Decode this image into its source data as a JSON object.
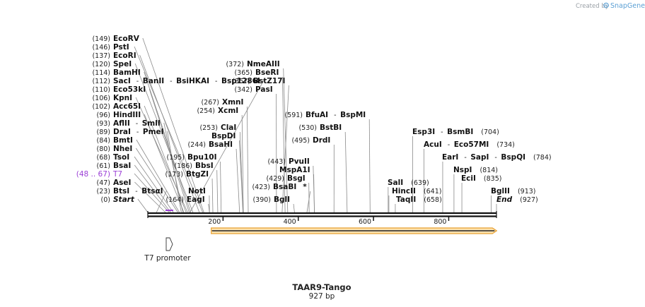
{
  "header": {
    "credit": "Created by",
    "brand": "SnapGene"
  },
  "plasmid": {
    "name": "TAAR9-Tango",
    "length_label": "927 bp",
    "length": 927
  },
  "colors": {
    "feature": "#9b3fd6",
    "orf_fill": "#fde3b0",
    "orf_stroke": "#e8a030",
    "backbone": "#111111",
    "credit": "#9aa0a6",
    "brand": "#5a9fd4"
  },
  "ticks": [
    {
      "bp": 200,
      "label": "200"
    },
    {
      "bp": 400,
      "label": "400"
    },
    {
      "bp": 600,
      "label": "600"
    },
    {
      "bp": 800,
      "label": "800"
    }
  ],
  "left_labels": [
    {
      "pos": "(0)",
      "names": [
        {
          "text": "Start",
          "style": "ital"
        }
      ],
      "bp": 0
    },
    {
      "pos": "(23)",
      "names": [
        {
          "text": "BtsI"
        },
        {
          "text": "BtsαI"
        }
      ],
      "bp": 23
    },
    {
      "pos": "(47)",
      "names": [
        {
          "text": "AseI"
        }
      ],
      "bp": 47
    },
    {
      "pos": "(48 .. 67)",
      "names": [
        {
          "text": "T7"
        }
      ],
      "bp": 57,
      "feature": true
    },
    {
      "pos": "(61)",
      "names": [
        {
          "text": "BsaI"
        }
      ],
      "bp": 61
    },
    {
      "pos": "(68)",
      "names": [
        {
          "text": "TsoI"
        }
      ],
      "bp": 68
    },
    {
      "pos": "(80)",
      "names": [
        {
          "text": "NheI"
        }
      ],
      "bp": 80
    },
    {
      "pos": "(84)",
      "names": [
        {
          "text": "BmtI"
        }
      ],
      "bp": 84
    },
    {
      "pos": "(89)",
      "names": [
        {
          "text": "DraI"
        },
        {
          "text": "PmeI"
        }
      ],
      "bp": 89
    },
    {
      "pos": "(93)",
      "names": [
        {
          "text": "AflII"
        },
        {
          "text": "SmlI"
        }
      ],
      "bp": 93
    },
    {
      "pos": "(96)",
      "names": [
        {
          "text": "HindIII"
        }
      ],
      "bp": 96
    },
    {
      "pos": "(102)",
      "names": [
        {
          "text": "Acc65I"
        }
      ],
      "bp": 102
    },
    {
      "pos": "(106)",
      "names": [
        {
          "text": "KpnI"
        }
      ],
      "bp": 106
    },
    {
      "pos": "(110)",
      "names": [
        {
          "text": "Eco53kI"
        }
      ],
      "bp": 110
    },
    {
      "pos": "(112)",
      "names": [
        {
          "text": "SacI"
        },
        {
          "text": "BanII"
        },
        {
          "text": "BsiHKAI"
        },
        {
          "text": "Bsp1286I"
        }
      ],
      "bp": 112
    },
    {
      "pos": "(114)",
      "names": [
        {
          "text": "BamHI"
        }
      ],
      "bp": 114
    },
    {
      "pos": "(120)",
      "names": [
        {
          "text": "SpeI"
        }
      ],
      "bp": 120
    },
    {
      "pos": "(137)",
      "names": [
        {
          "text": "EcoRI"
        }
      ],
      "bp": 137
    },
    {
      "pos": "(146)",
      "names": [
        {
          "text": "PstI"
        }
      ],
      "bp": 146
    },
    {
      "pos": "(149)",
      "names": [
        {
          "text": "EcoRV"
        }
      ],
      "bp": 149
    }
  ],
  "center_labels": [
    {
      "pos": "(164)",
      "names": [
        {
          "text": "EagI"
        }
      ],
      "bp": 164
    },
    {
      "pos": "(164)",
      "names": [
        {
          "text": "NotI"
        }
      ],
      "bp": 164,
      "pos_hidden": true
    },
    {
      "pos": "(173)",
      "names": [
        {
          "text": "BtgZI"
        }
      ],
      "bp": 173
    },
    {
      "pos": "(186)",
      "names": [
        {
          "text": "BbsI"
        }
      ],
      "bp": 186
    },
    {
      "pos": "(195)",
      "names": [
        {
          "text": "Bpu10I"
        }
      ],
      "bp": 195
    },
    {
      "pos": "(244)",
      "names": [
        {
          "text": "BsaHI"
        }
      ],
      "bp": 244
    },
    {
      "pos": "(253)",
      "names": [
        {
          "text": "BspDI"
        }
      ],
      "bp": 253,
      "pos_hidden": true
    },
    {
      "pos": "(253)",
      "names": [
        {
          "text": "ClaI"
        }
      ],
      "bp": 253
    },
    {
      "pos": "(254)",
      "names": [
        {
          "text": "XcmI"
        }
      ],
      "bp": 254
    },
    {
      "pos": "(267)",
      "names": [
        {
          "text": "XmnI"
        }
      ],
      "bp": 267
    },
    {
      "pos": "(342)",
      "names": [
        {
          "text": "PasI"
        }
      ],
      "bp": 342
    },
    {
      "pos": "(357)",
      "names": [
        {
          "text": "BstZ17I"
        }
      ],
      "bp": 357
    },
    {
      "pos": "(365)",
      "names": [
        {
          "text": "BseRI"
        }
      ],
      "bp": 365
    },
    {
      "pos": "(372)",
      "names": [
        {
          "text": "NmeAIII"
        }
      ],
      "bp": 372
    },
    {
      "pos": "(390)",
      "names": [
        {
          "text": "BglI"
        }
      ],
      "bp": 390
    },
    {
      "pos": "(423)",
      "names": [
        {
          "text": "BsaBI"
        },
        {
          "text": "*",
          "plain": true
        }
      ],
      "bp": 423
    },
    {
      "pos": "(429)",
      "names": [
        {
          "text": "BsgI"
        }
      ],
      "bp": 429
    },
    {
      "pos": "(443)",
      "names": [
        {
          "text": "MspA1I"
        }
      ],
      "bp": 443,
      "pos_hidden": true
    },
    {
      "pos": "(443)",
      "names": [
        {
          "text": "PvuII"
        }
      ],
      "bp": 443
    },
    {
      "pos": "(495)",
      "names": [
        {
          "text": "DrdI"
        }
      ],
      "bp": 495
    },
    {
      "pos": "(530)",
      "names": [
        {
          "text": "BstBI"
        }
      ],
      "bp": 530
    },
    {
      "pos": "(591)",
      "names": [
        {
          "text": "BfuAI"
        },
        {
          "text": "BspMI"
        }
      ],
      "bp": 591
    }
  ],
  "right_labels": [
    {
      "pos": "(639)",
      "names": [
        {
          "text": "SalI"
        }
      ],
      "bp": 639
    },
    {
      "pos": "(641)",
      "names": [
        {
          "text": "HincII"
        }
      ],
      "bp": 641
    },
    {
      "pos": "(658)",
      "names": [
        {
          "text": "TaqII"
        }
      ],
      "bp": 658
    },
    {
      "pos": "(704)",
      "names": [
        {
          "text": "Esp3I"
        },
        {
          "text": "BsmBI"
        }
      ],
      "bp": 704
    },
    {
      "pos": "(734)",
      "names": [
        {
          "text": "AcuI"
        },
        {
          "text": "Eco57MI"
        }
      ],
      "bp": 734
    },
    {
      "pos": "(784)",
      "names": [
        {
          "text": "EarI"
        },
        {
          "text": "SapI"
        },
        {
          "text": "BspQI"
        }
      ],
      "bp": 784
    },
    {
      "pos": "(814)",
      "names": [
        {
          "text": "NspI"
        }
      ],
      "bp": 814
    },
    {
      "pos": "(835)",
      "names": [
        {
          "text": "EciI"
        }
      ],
      "bp": 835
    },
    {
      "pos": "(913)",
      "names": [
        {
          "text": "BglII"
        }
      ],
      "bp": 913
    },
    {
      "pos": "(927)",
      "names": [
        {
          "text": "End",
          "style": "ital"
        }
      ],
      "bp": 927
    }
  ],
  "features": {
    "promoter_label": "T7 promoter",
    "orf_start_bp": 178,
    "orf_end_bp": 920
  }
}
